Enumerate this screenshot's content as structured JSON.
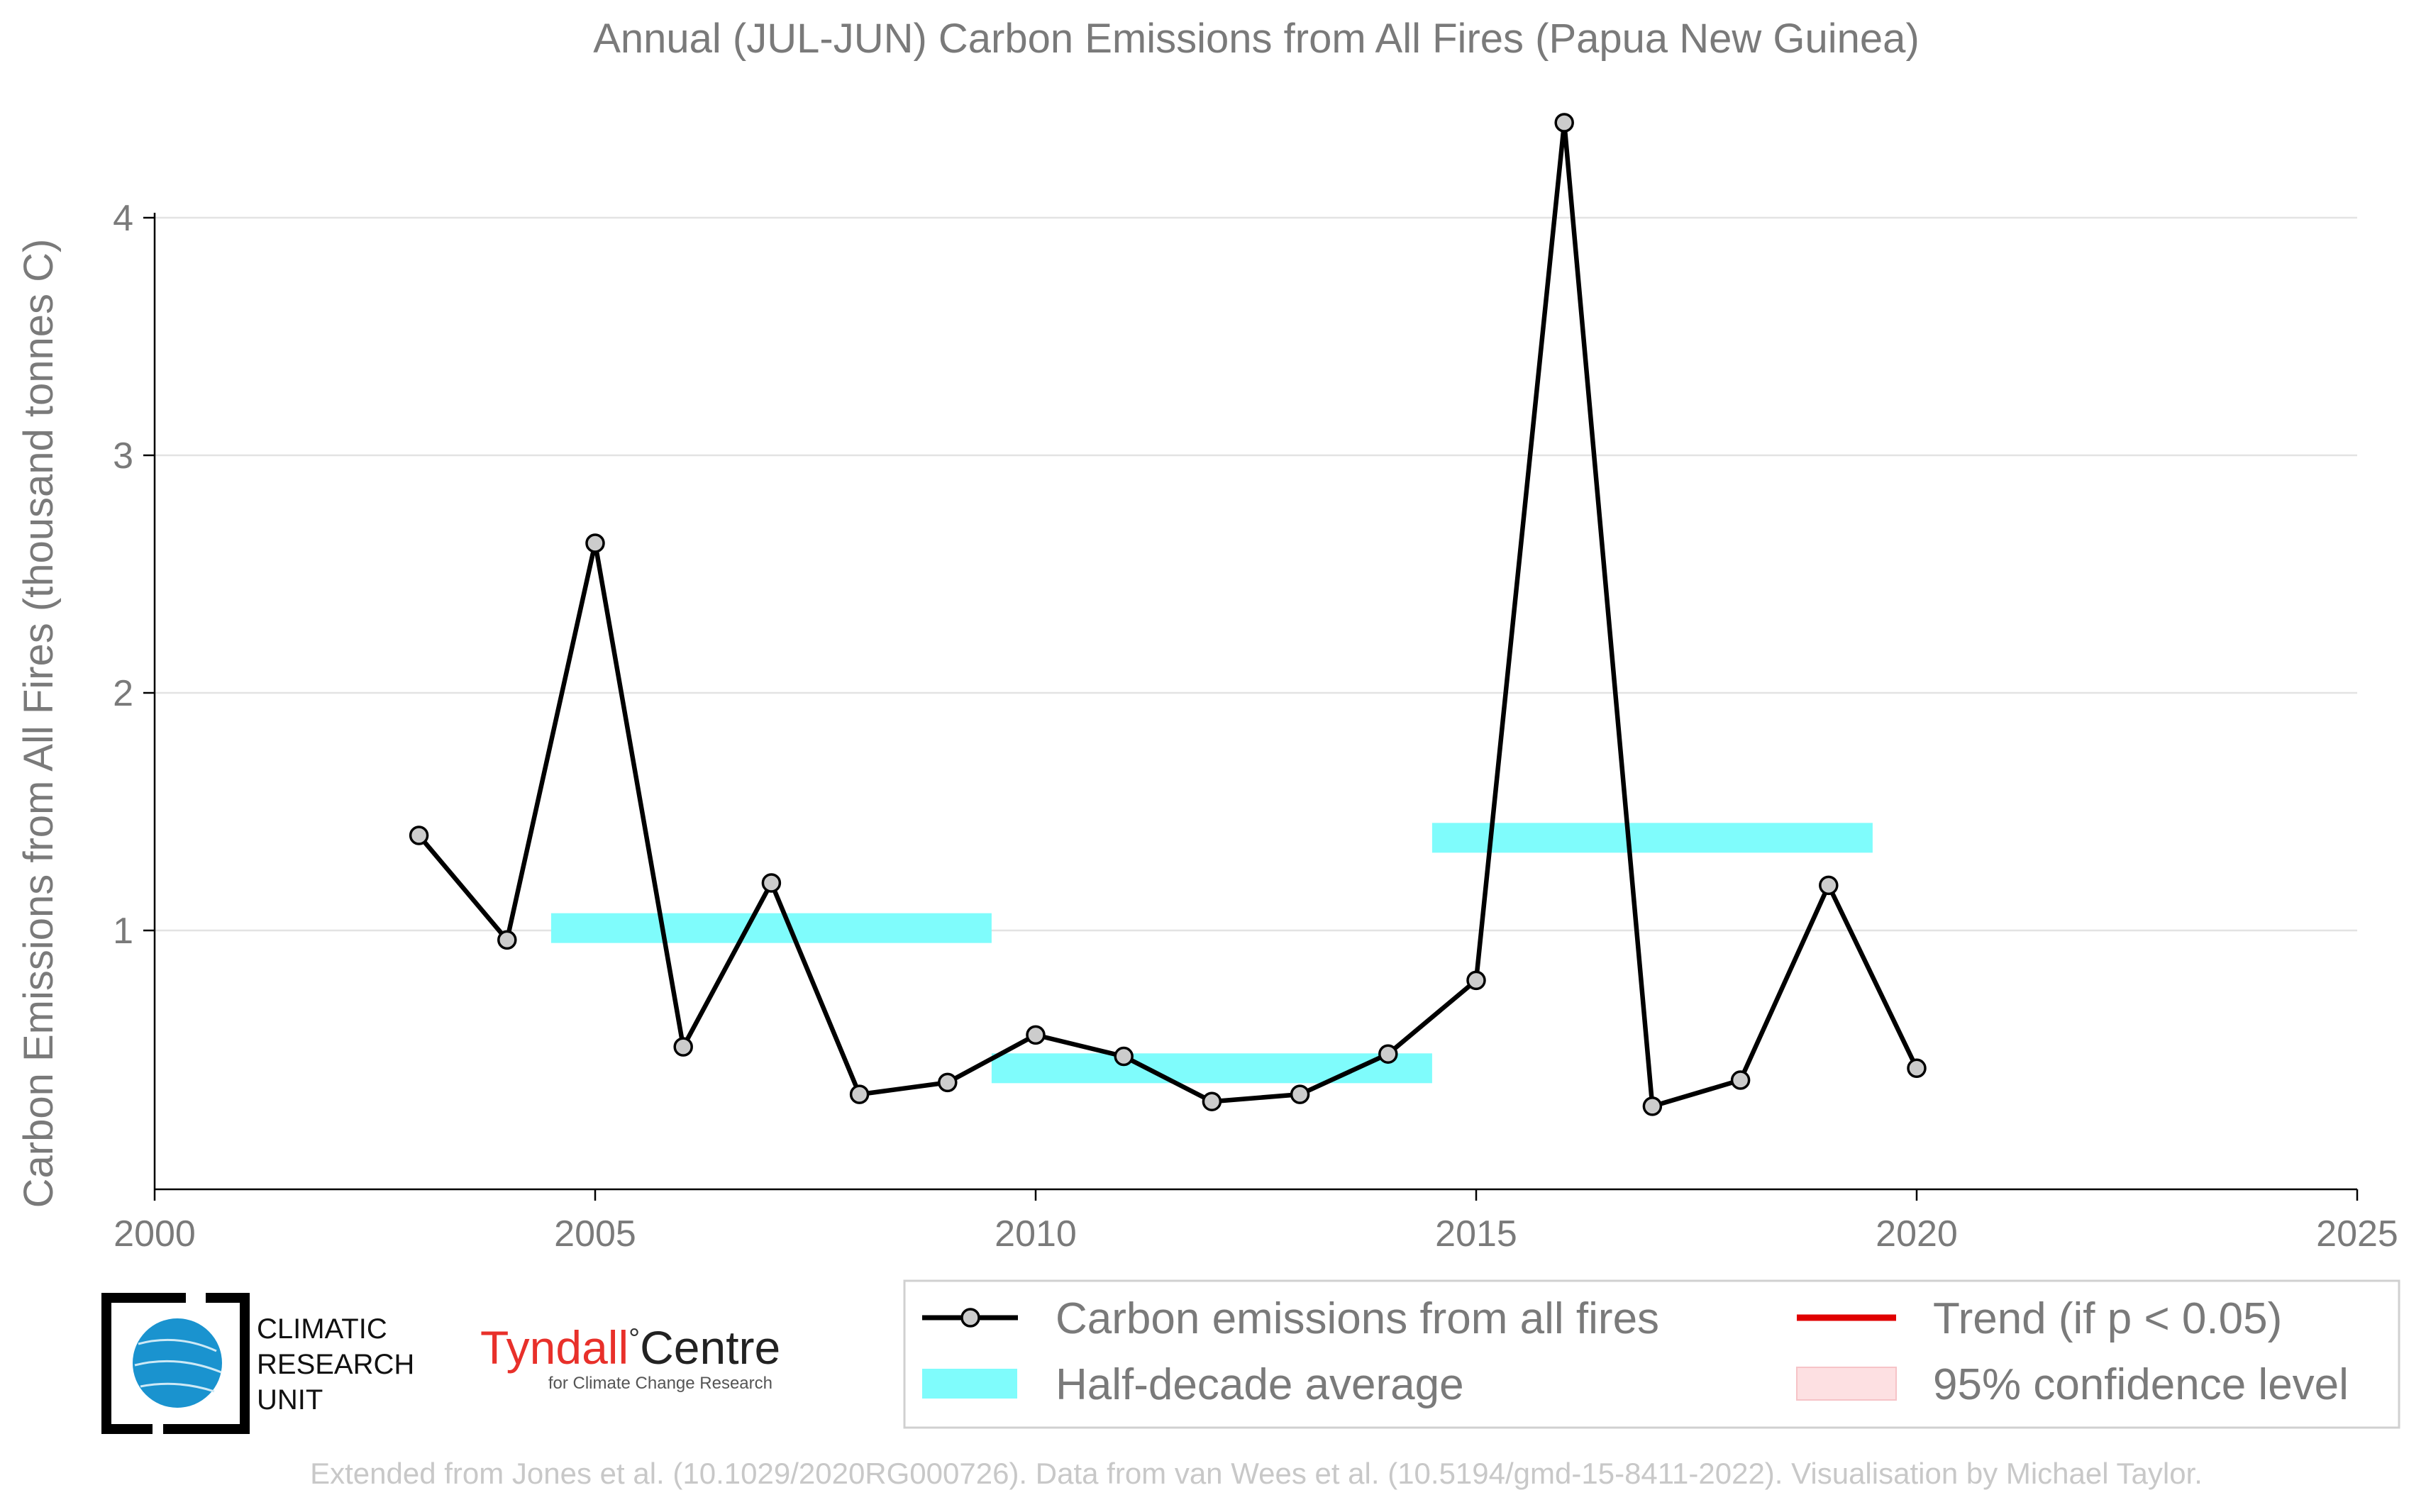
{
  "chart_data": {
    "type": "line",
    "title": "Annual (JUL-JUN) Carbon Emissions from All Fires (Papua New Guinea)",
    "ylabel": "Carbon Emissions from All Fires (thousand tonnes C)",
    "xlabel": "",
    "xlim": [
      2000,
      2025
    ],
    "ylim": [
      0,
      4.5
    ],
    "x_ticks": [
      "2000",
      "2005",
      "2010",
      "2015",
      "2020",
      "2025"
    ],
    "y_ticks": [
      "1",
      "2",
      "3",
      "4"
    ],
    "grid": "horizontal",
    "series": [
      {
        "name": "Carbon emissions from all fires",
        "color": "#000000",
        "marker_color": "#cccccc",
        "x": [
          2003,
          2004,
          2005,
          2006,
          2007,
          2008,
          2009,
          2010,
          2011,
          2012,
          2013,
          2014,
          2015,
          2016,
          2017,
          2018,
          2019,
          2020
        ],
        "y": [
          1.4,
          0.96,
          2.63,
          0.51,
          1.2,
          0.31,
          0.36,
          0.56,
          0.47,
          0.28,
          0.31,
          0.48,
          0.79,
          4.4,
          0.26,
          0.37,
          1.19,
          0.42
        ]
      }
    ],
    "half_decade_average": {
      "name": "Half-decade average",
      "color": "#7ffcfc",
      "segments": [
        {
          "x0": 2004.5,
          "x1": 2009.5,
          "y": 1.01
        },
        {
          "x0": 2009.5,
          "x1": 2014.5,
          "y": 0.42
        },
        {
          "x0": 2014.5,
          "x1": 2019.5,
          "y": 1.39
        }
      ]
    },
    "legend": {
      "placement": "bottom-right",
      "entries": [
        {
          "label": "Carbon emissions from all fires",
          "kind": "line-marker",
          "color": "#000000"
        },
        {
          "label": "Trend (if p < 0.05)",
          "kind": "line",
          "color": "#e00000"
        },
        {
          "label": "Half-decade average",
          "kind": "band",
          "color": "#7ffcfc"
        },
        {
          "label": "95% confidence level",
          "kind": "band",
          "color": "#fde0e2"
        }
      ]
    }
  },
  "logos": {
    "cru_line1": "CLIMATIC",
    "cru_line2": "RESEARCH",
    "cru_line3": "UNIT",
    "tyndall_main": "Tyndall",
    "tyndall_degree": "°",
    "tyndall_centre": "Centre",
    "tyndall_sub": "for Climate Change Research",
    "tyndall_color": "#e8302a"
  },
  "footer": "Extended from Jones et al. (10.1029/2020RG000726). Data from van Wees et al. (10.5194/gmd-15-8411-2022). Visualisation by Michael Taylor."
}
